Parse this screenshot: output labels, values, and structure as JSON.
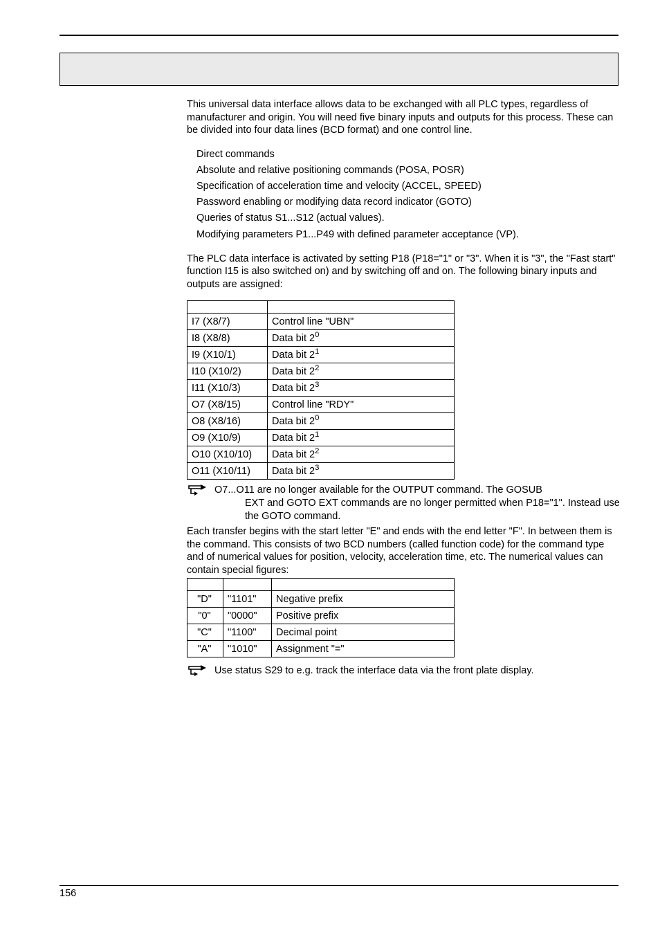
{
  "intro": "This universal data interface allows data to be exchanged with all PLC types, regardless of manufacturer and origin. You will need five binary inputs and outputs for this process. These can be divided into four data lines (BCD format) and one control line.",
  "bullets": [
    "Direct commands",
    "Absolute and relative positioning commands (POSA, POSR)",
    "Specification of acceleration time and velocity (ACCEL, SPEED)",
    "Password enabling or modifying data record indicator (GOTO)",
    "Queries of status S1...S12 (actual values).",
    "Modifying parameters P1...P49 with defined parameter acceptance (VP)."
  ],
  "activation": "The PLC data interface is activated by setting P18 (P18=\"1\" or \"3\". When it is \"3\", the \"Fast start\" function I15 is also switched on) and by switching off and on. The following binary inputs and outputs are assigned:",
  "io_rows": [
    {
      "k": "I7 (X8/7)",
      "v": "Control line \"UBN\""
    },
    {
      "k": "I8 (X8/8)",
      "v": "Data bit 2",
      "sup": "0"
    },
    {
      "k": "I9 (X10/1)",
      "v": "Data bit 2",
      "sup": "1"
    },
    {
      "k": "I10 (X10/2)",
      "v": "Data bit 2",
      "sup": "2"
    },
    {
      "k": "I11 (X10/3)",
      "v": "Data bit 2",
      "sup": "3"
    },
    {
      "k": "O7 (X8/15)",
      "v": "Control line \"RDY\""
    },
    {
      "k": "O8 (X8/16)",
      "v": "Data bit 2",
      "sup": "0"
    },
    {
      "k": "O9 (X10/9)",
      "v": "Data bit 2",
      "sup": "1"
    },
    {
      "k": "O10 (X10/10)",
      "v": "Data bit 2",
      "sup": "2"
    },
    {
      "k": "O11 (X10/11)",
      "v": "Data bit 2",
      "sup": "3"
    }
  ],
  "note1_line1": "O7...O11 are no longer available for the OUTPUT command. The GOSUB",
  "note1_rest": "EXT and GOTO EXT commands are no longer permitted when P18=\"1\". Instead use the GOTO command.",
  "transfer": "Each transfer begins with the start letter \"E\" and ends with the end letter \"F\". In between them is the command. This consists of two BCD numbers (called function code) for the command type and of numerical values for position, velocity, acceleration time, etc. The numerical values can contain special figures:",
  "spec_rows": [
    {
      "a": "\"D\"",
      "b": "\"1101\"",
      "c": "Negative prefix"
    },
    {
      "a": "\"0\"",
      "b": "\"0000\"",
      "c": "Positive prefix"
    },
    {
      "a": "\"C\"",
      "b": "\"1100\"",
      "c": "Decimal point"
    },
    {
      "a": "\"A\"",
      "b": "\"1010\"",
      "c": "Assignment \"=\""
    }
  ],
  "note2": "Use status S29 to e.g. track the interface data via the front plate display.",
  "page_num": "156"
}
